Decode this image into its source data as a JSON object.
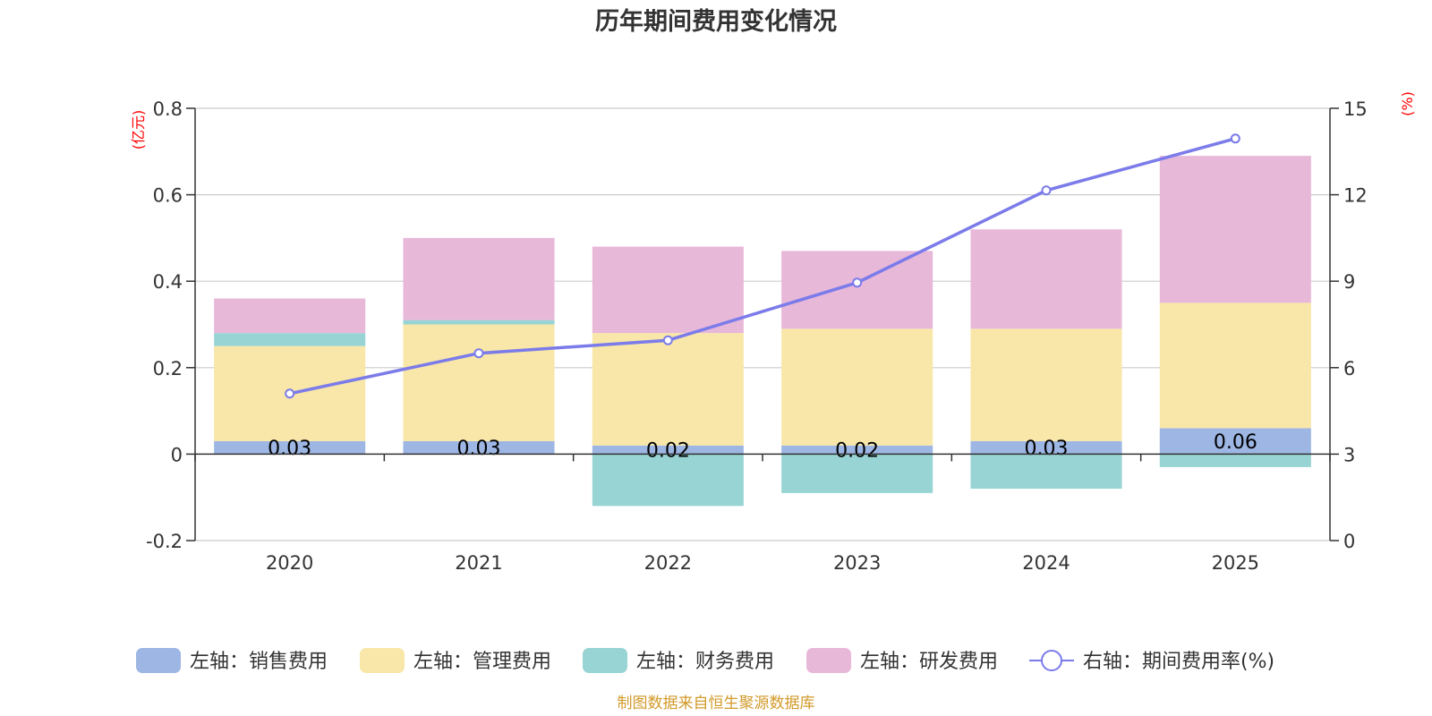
{
  "chart_data": {
    "type": "bar",
    "title": "历年期间费用变化情况",
    "categories": [
      "2020",
      "2021",
      "2022",
      "2023",
      "2024",
      "2025"
    ],
    "left_axis": {
      "unit": "(亿元)",
      "ylim": [
        -0.2,
        0.8
      ],
      "ticks": [
        -0.2,
        0,
        0.2,
        0.4,
        0.6,
        0.8
      ],
      "tick_labels": [
        "-0.2",
        "0",
        "0.2",
        "0.4",
        "0.6",
        "0.8"
      ]
    },
    "right_axis": {
      "unit": "(%)",
      "ylim": [
        0,
        15
      ],
      "ticks": [
        0,
        3,
        6,
        9,
        12,
        15
      ],
      "tick_labels": [
        "0",
        "3",
        "6",
        "9",
        "12",
        "15"
      ]
    },
    "series": [
      {
        "name": "左轴：销售费用",
        "type": "bar",
        "color": "#9db6e3",
        "values": [
          0.03,
          0.03,
          0.02,
          0.02,
          0.03,
          0.06
        ],
        "labels": [
          "0.03",
          "0.03",
          "0.02",
          "0.02",
          "0.03",
          "0.06"
        ]
      },
      {
        "name": "左轴：管理费用",
        "type": "bar",
        "color": "#f8e7a8",
        "values": [
          0.22,
          0.27,
          0.26,
          0.27,
          0.26,
          0.29
        ]
      },
      {
        "name": "左轴：财务费用",
        "type": "bar",
        "color": "#98d4d4",
        "values": [
          0.03,
          0.01,
          -0.12,
          -0.09,
          -0.08,
          -0.03
        ]
      },
      {
        "name": "左轴：研发费用",
        "type": "bar",
        "color": "#e8b8d9",
        "values": [
          0.08,
          0.19,
          0.2,
          0.18,
          0.23,
          0.34
        ]
      },
      {
        "name": "右轴：期间费用率(%)",
        "type": "line",
        "color": "#7b7bea",
        "values": [
          5.1,
          6.5,
          6.95,
          8.95,
          12.15,
          13.95
        ]
      }
    ],
    "grid": true,
    "legend_position": "bottom"
  },
  "source_note": "制图数据来自恒生聚源数据库"
}
